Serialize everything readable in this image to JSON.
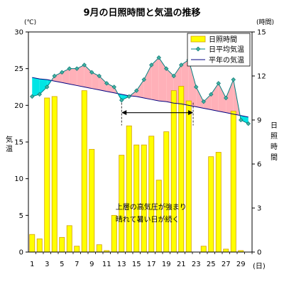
{
  "chart_data": {
    "type": "bar+line",
    "title": "9月の日照時間と気温の推移",
    "x": [
      1,
      2,
      3,
      4,
      5,
      6,
      7,
      8,
      9,
      10,
      11,
      12,
      13,
      14,
      15,
      16,
      17,
      18,
      19,
      20,
      21,
      22,
      23,
      24,
      25,
      26,
      27,
      28,
      29,
      30
    ],
    "x_ticks": [
      1,
      3,
      5,
      7,
      9,
      11,
      13,
      15,
      17,
      19,
      21,
      23,
      25,
      27,
      29
    ],
    "x_unit": "(日)",
    "y_left": {
      "unit": "(℃)",
      "label": "気温",
      "range": [
        0,
        30
      ],
      "ticks": [
        0,
        5,
        10,
        15,
        20,
        25,
        30
      ]
    },
    "y_right": {
      "unit": "(時間)",
      "label": "日照時間",
      "range": [
        0,
        15
      ],
      "ticks": [
        0,
        3,
        6,
        9,
        12,
        15
      ]
    },
    "series": [
      {
        "name": "日照時間",
        "kind": "bar",
        "axis": "right",
        "color": "#FFFF00",
        "border": "#D4A000",
        "values": [
          1.2,
          0.9,
          10.5,
          10.6,
          1.0,
          1.8,
          0.4,
          11.0,
          7.0,
          0.5,
          0.1,
          2.5,
          6.6,
          8.6,
          7.3,
          7.3,
          7.9,
          4.9,
          8.2,
          11.0,
          11.3,
          10.3,
          0.0,
          0.4,
          6.5,
          6.8,
          0.2,
          9.6,
          0.1,
          0.0
        ]
      },
      {
        "name": "日平均気温",
        "kind": "line-marker",
        "axis": "left",
        "color": "#008080",
        "values": [
          21.2,
          21.5,
          22.5,
          24.0,
          24.5,
          25.0,
          25.0,
          25.5,
          24.5,
          24.0,
          23.0,
          22.5,
          20.7,
          21.2,
          22.0,
          23.5,
          25.5,
          26.5,
          25.0,
          24.0,
          25.5,
          26.2,
          22.5,
          20.5,
          21.5,
          23.0,
          21.0,
          23.5,
          18.0,
          17.5
        ]
      },
      {
        "name": "平年の気温",
        "kind": "line",
        "axis": "left",
        "color": "#000080",
        "values": [
          23.8,
          23.6,
          23.5,
          23.3,
          23.1,
          22.9,
          22.7,
          22.5,
          22.3,
          22.1,
          21.9,
          21.7,
          21.5,
          21.3,
          21.2,
          21.0,
          20.8,
          20.6,
          20.5,
          20.3,
          20.2,
          20.0,
          19.8,
          19.6,
          19.4,
          19.2,
          19.0,
          18.8,
          18.6,
          18.4
        ]
      }
    ],
    "fill_above_color": "#FFB0B8",
    "fill_below_color": "#00E5E5",
    "annotation": {
      "lines": [
        "上層の高気圧が強まり",
        "晴れて暑い日が続く"
      ],
      "span_days": [
        13,
        22
      ]
    },
    "legend_position": "top-right",
    "grid": false
  }
}
